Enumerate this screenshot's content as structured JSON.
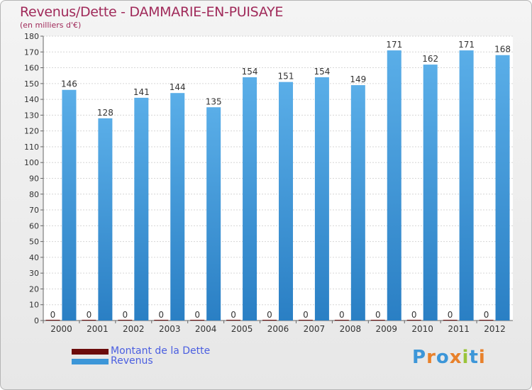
{
  "header": {
    "title": "Revenus/Dette - DAMMARIE-EN-PUISAYE",
    "subtitle": "(en milliers d'€)"
  },
  "logo": {
    "text": "Proxiti"
  },
  "colors": {
    "dette": "#6b0b0b",
    "revenus": "#3c96d8",
    "title": "#a02a5a",
    "legend_text": "#4a5ee0"
  },
  "chart_data": {
    "type": "bar",
    "categories": [
      "2000",
      "2001",
      "2002",
      "2003",
      "2004",
      "2005",
      "2006",
      "2007",
      "2008",
      "2009",
      "2010",
      "2011",
      "2012"
    ],
    "series": [
      {
        "name": "Montant de la Dette",
        "values": [
          0,
          0,
          0,
          0,
          0,
          0,
          0,
          0,
          0,
          0,
          0,
          0,
          0
        ]
      },
      {
        "name": "Revenus",
        "values": [
          146,
          128,
          141,
          144,
          135,
          154,
          151,
          154,
          149,
          171,
          162,
          171,
          168
        ]
      }
    ],
    "ylim": [
      0,
      180
    ],
    "yticks": [
      0,
      10,
      20,
      30,
      40,
      50,
      60,
      70,
      80,
      90,
      100,
      110,
      120,
      130,
      140,
      150,
      160,
      170,
      180
    ],
    "grid": true,
    "legend_position": "bottom-left"
  }
}
